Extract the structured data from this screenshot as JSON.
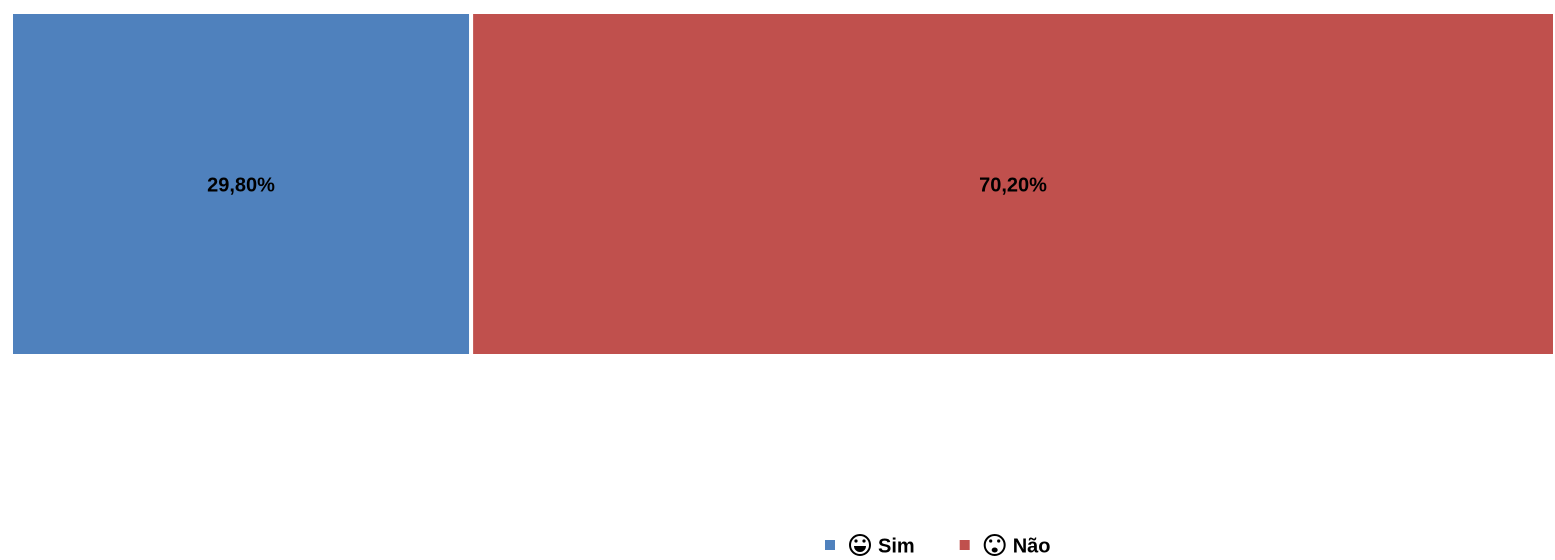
{
  "chart_data": {
    "type": "bar",
    "stacked": true,
    "xlim": [
      0,
      100
    ],
    "series": [
      {
        "name": "Sim",
        "color": "#4f81bd",
        "values": [
          29.8
        ],
        "value_labels": [
          "29,80%"
        ]
      },
      {
        "name": "Não",
        "color": "#c0504d",
        "values": [
          70.2
        ],
        "value_labels": [
          "70,20%"
        ]
      }
    ]
  }
}
